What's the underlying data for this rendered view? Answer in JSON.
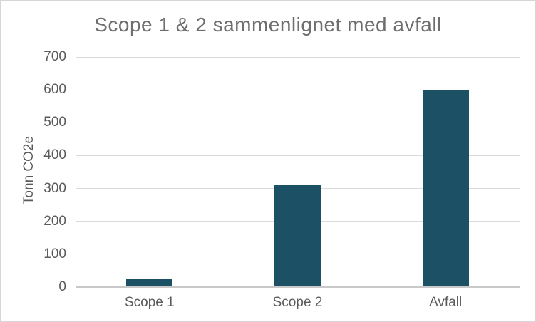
{
  "chart_data": {
    "type": "bar",
    "title": "Scope 1 & 2 sammenlignet med avfall",
    "ylabel": "Tonn CO2e",
    "xlabel": "",
    "categories": [
      "Scope 1",
      "Scope 2",
      "Avfall"
    ],
    "values": [
      25,
      310,
      600
    ],
    "ylim": [
      0,
      700
    ],
    "yticks": [
      0,
      100,
      200,
      300,
      400,
      500,
      600,
      700
    ],
    "grid": true,
    "legend": false,
    "layout_hints": {
      "legend_position": "none",
      "bar_orientation": "vertical"
    },
    "colors": {
      "bar": "#1C5065",
      "gridline": "#DADADA",
      "axis_line": "#C9C9C9",
      "title_text": "#6E6E6E",
      "tick_text": "#5A5A5A",
      "frame_border": "#D6D6D6",
      "background": "#FFFFFF"
    }
  }
}
